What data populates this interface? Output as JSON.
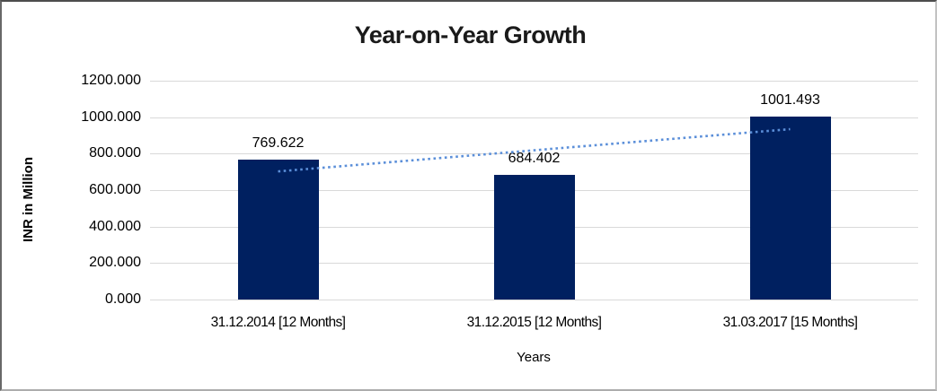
{
  "chart_data": {
    "type": "bar",
    "title": "Year-on-Year Growth",
    "xlabel": "Years",
    "ylabel": "INR in Million",
    "categories": [
      "31.12.2014 [12 Months]",
      "31.12.2015 [12 Months]",
      "31.03.2017 [15 Months]"
    ],
    "values": [
      769.622,
      684.402,
      1001.493
    ],
    "value_labels": [
      "769.622",
      "684.402",
      "1001.493"
    ],
    "ylim": [
      0,
      1200
    ],
    "ytick_step": 200,
    "ytick_labels_top_to_bottom": [
      "1200.000",
      "1000.000",
      "800.000",
      "600.000",
      "400.000",
      "200.000",
      "0.000"
    ],
    "grid": "horizontal",
    "legend": "none",
    "trendline": {
      "type": "linear",
      "style": "dotted",
      "start_value": 702.6,
      "end_value": 934.4
    },
    "colors": {
      "bar": "#002060",
      "trendline": "#5b8fd9",
      "gridline": "#d9d9d9",
      "title_text": "#1a1a1a",
      "label_text": "#000000"
    }
  }
}
